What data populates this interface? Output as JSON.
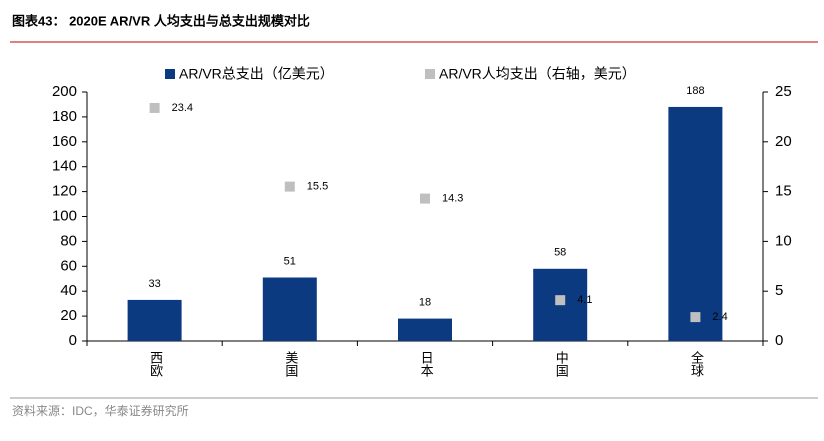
{
  "chart_data": {
    "type": "bar",
    "title": "图表43：  2020E AR/VR 人均支出与总支出规模对比",
    "source": "资料来源：IDC，华泰证券研究所",
    "categories": [
      "西欧",
      "美国",
      "日本",
      "中国",
      "全球"
    ],
    "series": [
      {
        "name": "AR/VR总支出（亿美元）",
        "type": "bar",
        "color": "#0b3a80",
        "values": [
          33,
          51,
          18,
          58,
          188
        ]
      },
      {
        "name": "AR/VR人均支出（右轴，美元）",
        "type": "scatter",
        "axis": "y2",
        "color": "#bfbfbf",
        "values": [
          23.4,
          15.5,
          14.3,
          4.1,
          2.4
        ]
      }
    ],
    "ylim": [
      0,
      200
    ],
    "yticks": [
      0,
      20,
      40,
      60,
      80,
      100,
      120,
      140,
      160,
      180,
      200
    ],
    "y2lim": [
      0,
      25
    ],
    "y2ticks": [
      0,
      5,
      10,
      15,
      20,
      25
    ]
  }
}
